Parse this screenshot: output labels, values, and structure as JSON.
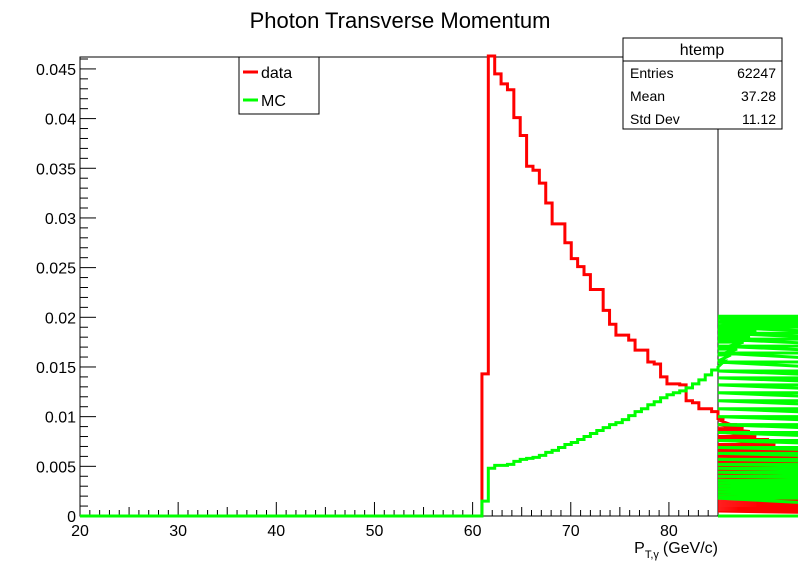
{
  "chart_data": {
    "type": "line",
    "title": "Photon Transverse Momentum",
    "xlabel": "P",
    "xlabel_sub": "T,γ",
    "xlabel_unit": "(GeV/c)",
    "ylabel": "",
    "xlim": [
      20,
      85
    ],
    "ylim": [
      0,
      0.0462
    ],
    "grid": false,
    "legend_placement": "top-left",
    "x_ticks": [
      "20",
      "30",
      "40",
      "50",
      "60",
      "70",
      "80"
    ],
    "y_ticks": [
      "0",
      "0.005",
      "0.01",
      "0.015",
      "0.02",
      "0.025",
      "0.03",
      "0.035",
      "0.04",
      "0.045"
    ],
    "bin_width": 0.65,
    "bin_start": 20,
    "series": [
      {
        "name": "data",
        "color": "#ff0000",
        "values": [
          0,
          0,
          0,
          0,
          0,
          0,
          0,
          0,
          0,
          0,
          0,
          0,
          0,
          0,
          0,
          0,
          0,
          0,
          0,
          0,
          0,
          0,
          0,
          0,
          0,
          0,
          0,
          0,
          0,
          0,
          0,
          0,
          0,
          0,
          0,
          0,
          0,
          0,
          0,
          0,
          0,
          0,
          0,
          0,
          0,
          0,
          0,
          0,
          0,
          0,
          0,
          0,
          0,
          0,
          0,
          0,
          0,
          0,
          0,
          0,
          0,
          0,
          0,
          0.0143,
          0.0463,
          0.0445,
          0.0435,
          0.0429,
          0.0401,
          0.0383,
          0.0352,
          0.0348,
          0.0335,
          0.0315,
          0.0294,
          0.0294,
          0.0275,
          0.0259,
          0.0251,
          0.0243,
          0.0228,
          0.0228,
          0.0207,
          0.0193,
          0.0182,
          0.0182,
          0.0177,
          0.0167,
          0.0167,
          0.0155,
          0.0153,
          0.014,
          0.0133,
          0.0133,
          0.0132,
          0.0116,
          0.0114,
          0.0108,
          0.0108,
          0.0105,
          0.0098,
          0.0097,
          0.0092,
          0.0092,
          0.0088,
          0.0085,
          0.008,
          0.0077,
          0.0077,
          0.0072,
          0.0069,
          0.0068,
          0.0065,
          0.0065,
          0.006,
          0.0059,
          0.0058,
          0.0057,
          0.0054,
          0.0052,
          0.0049,
          0.0046,
          0.0045,
          0.0042,
          0.004,
          0.0039,
          0.0037,
          0.0035,
          0.0033,
          0.003,
          0.0028,
          0.0026,
          0.0025,
          0.0023,
          0.0022,
          0.0021,
          0.002,
          0.0019,
          0.0018,
          0.0017,
          0.0016,
          0.0015,
          0.0014,
          0.0013,
          0.0012,
          0.0011,
          0.001,
          0.0009,
          0.0008,
          0.0007,
          0.0006,
          0.0005,
          0,
          0,
          0,
          0,
          0,
          0,
          0,
          0
        ]
      },
      {
        "name": "MC",
        "color": "#00ff00",
        "values": [
          0,
          0,
          0,
          0,
          0,
          0,
          0,
          0,
          0,
          0,
          0,
          0,
          0,
          0,
          0,
          0,
          0,
          0,
          0,
          0,
          0,
          0,
          0,
          0,
          0,
          0,
          0,
          0,
          0,
          0,
          0,
          0,
          0,
          0,
          0,
          0,
          0,
          0,
          0,
          0,
          0,
          0,
          0,
          0,
          0,
          0,
          0,
          0,
          0,
          0,
          0,
          0,
          0,
          0,
          0,
          0,
          0,
          0,
          0,
          0,
          0,
          0,
          0,
          0.0015,
          0.0048,
          0.0051,
          0.0051,
          0.0052,
          0.0055,
          0.0057,
          0.0058,
          0.0059,
          0.0061,
          0.0064,
          0.0066,
          0.0069,
          0.0072,
          0.0074,
          0.0077,
          0.008,
          0.0083,
          0.0086,
          0.0089,
          0.0092,
          0.0094,
          0.0097,
          0.0101,
          0.0105,
          0.0108,
          0.0112,
          0.0115,
          0.0119,
          0.0122,
          0.0124,
          0.0126,
          0.0129,
          0.0133,
          0.0137,
          0.0142,
          0.0147,
          0.015,
          0.0156,
          0.0162,
          0.0168,
          0.0175,
          0.0181,
          0.0187,
          0.0194,
          0.0197,
          0.02,
          0.0198,
          0.0195,
          0.0193,
          0.0196,
          0.0199,
          0.0201,
          0.02,
          0.0199,
          0.0198,
          0.0199,
          0.0194,
          0.019,
          0.0184,
          0.0178,
          0.0171,
          0.0164,
          0.0155,
          0.0146,
          0.0139,
          0.0132,
          0.0124,
          0.0116,
          0.0108,
          0.01,
          0.0092,
          0.0084,
          0.0076,
          0.0069,
          0.0063,
          0.0057,
          0.0052,
          0.0048,
          0.0044,
          0.004,
          0.0036,
          0.0033,
          0.003,
          0.0027,
          0.0024,
          0.0022,
          0.002,
          0.0018,
          0,
          0,
          0,
          0,
          0,
          0,
          0,
          0,
          0
        ]
      }
    ],
    "legend": [
      {
        "label": "data",
        "color": "#ff0000"
      },
      {
        "label": "MC",
        "color": "#00ff00"
      }
    ],
    "stats_box": {
      "title": "htemp",
      "rows": [
        {
          "label": "Entries",
          "value": "62247"
        },
        {
          "label": "Mean",
          "value": "37.28"
        },
        {
          "label": "Std Dev",
          "value": "11.12"
        }
      ]
    }
  }
}
